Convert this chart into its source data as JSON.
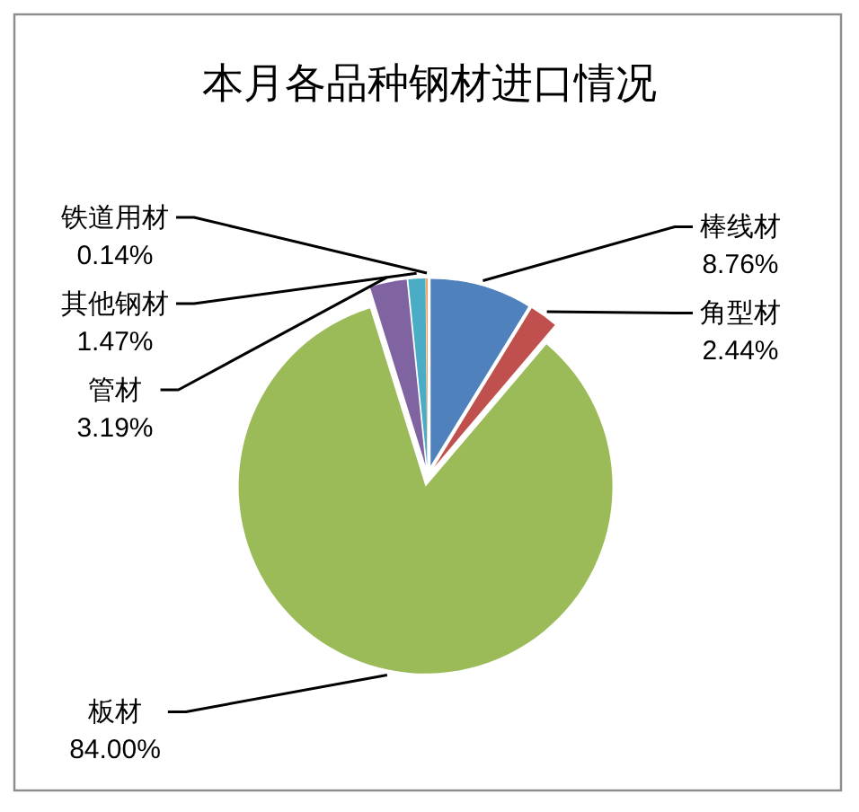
{
  "chart_data": {
    "type": "pie",
    "title": "本月各品种钢材进口情况",
    "categories": [
      "棒线材",
      "角型材",
      "板材",
      "管材",
      "其他钢材",
      "铁道用材"
    ],
    "values": [
      8.76,
      2.44,
      84.0,
      3.19,
      1.47,
      0.14
    ],
    "colors": [
      "#4f81bd",
      "#c0504d",
      "#9bbb59",
      "#8064a2",
      "#4bacc6",
      "#f79646"
    ],
    "value_labels": [
      "8.76%",
      "2.44%",
      "84.00%",
      "3.19%",
      "1.47%",
      "0.14%"
    ]
  }
}
